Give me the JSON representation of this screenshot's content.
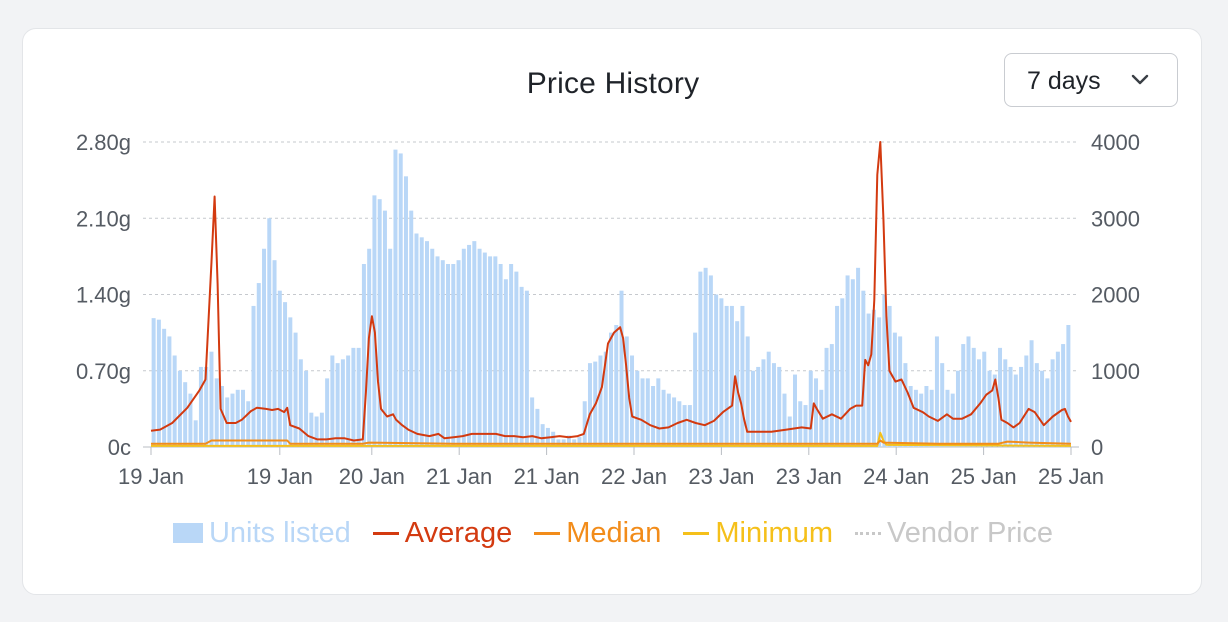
{
  "chart_data": {
    "type": "bar+line",
    "title": "Price History",
    "range_select": {
      "selected": "7 days"
    },
    "x_tick_labels": [
      "19 Jan",
      "19 Jan",
      "20 Jan",
      "21 Jan",
      "21 Jan",
      "22 Jan",
      "23 Jan",
      "23 Jan",
      "24 Jan",
      "25 Jan",
      "25 Jan"
    ],
    "y_left": {
      "ticks": [
        "0c",
        "0.70g",
        "1.40g",
        "2.10g",
        "2.80g"
      ],
      "ylim": [
        0,
        2.8
      ],
      "unit": "gold"
    },
    "y_right": {
      "ticks": [
        "0",
        "1000",
        "2000",
        "3000",
        "4000"
      ],
      "ylim": [
        0,
        4000
      ]
    },
    "grid": "horizontal-dashed",
    "legend": {
      "position": "bottom",
      "items": [
        {
          "label": "Units listed",
          "color": "#b9d7f7",
          "kind": "bar"
        },
        {
          "label": "Average",
          "color": "#d33a10",
          "kind": "line"
        },
        {
          "label": "Median",
          "color": "#f28c1a",
          "kind": "line"
        },
        {
          "label": "Minimum",
          "color": "#f5c01a",
          "kind": "line"
        },
        {
          "label": "Vendor Price",
          "color": "#c8c8c8",
          "kind": "dotted"
        }
      ]
    },
    "series": [
      {
        "name": "Units listed",
        "axis": "right",
        "type": "bar",
        "values": [
          1690,
          1670,
          1550,
          1450,
          1200,
          1000,
          850,
          700,
          350,
          1050,
          1050,
          1250,
          900,
          800,
          650,
          700,
          750,
          750,
          600,
          1850,
          2150,
          2600,
          3000,
          2450,
          2050,
          1900,
          1700,
          1500,
          1150,
          1000,
          450,
          400,
          450,
          900,
          1200,
          1100,
          1150,
          1200,
          1300,
          1300,
          2400,
          2600,
          3300,
          3250,
          3100,
          2600,
          3900,
          3850,
          3550,
          3100,
          2800,
          2750,
          2700,
          2600,
          2500,
          2450,
          2400,
          2400,
          2450,
          2600,
          2650,
          2700,
          2600,
          2550,
          2500,
          2500,
          2400,
          2200,
          2400,
          2300,
          2100,
          2050,
          650,
          500,
          300,
          250,
          200,
          100,
          100,
          150,
          100,
          130,
          600,
          1100,
          1120,
          1200,
          1250,
          1500,
          1600,
          2050,
          1450,
          1200,
          1000,
          900,
          900,
          800,
          900,
          750,
          700,
          650,
          600,
          550,
          550,
          1500,
          2300,
          2350,
          2250,
          2000,
          1950,
          1850,
          1850,
          1650,
          1850,
          1450,
          1000,
          1050,
          1150,
          1250,
          1100,
          1050,
          700,
          400,
          950,
          600,
          550,
          1000,
          900,
          750,
          1300,
          1350,
          1850,
          1950,
          2250,
          2200,
          2350,
          2050,
          1750,
          1800,
          1700,
          2000,
          1850,
          1500,
          1450,
          1100,
          800,
          750,
          700,
          800,
          750,
          1450,
          1100,
          750,
          700,
          1000,
          1350,
          1450,
          1300,
          1150,
          1250,
          1000,
          950,
          1300,
          1150,
          1050,
          950,
          1050,
          1200,
          1400,
          1100,
          1000,
          900,
          1150,
          1250,
          1350,
          1600
        ]
      },
      {
        "name": "Average",
        "axis": "left",
        "type": "line",
        "points": [
          [
            0,
            0.15
          ],
          [
            3,
            0.16
          ],
          [
            7,
            0.22
          ],
          [
            12,
            0.36
          ],
          [
            16,
            0.52
          ],
          [
            18,
            0.62
          ],
          [
            20,
            1.7
          ],
          [
            21,
            2.3
          ],
          [
            22,
            1.5
          ],
          [
            23,
            0.35
          ],
          [
            25,
            0.22
          ],
          [
            28,
            0.22
          ],
          [
            30,
            0.25
          ],
          [
            33,
            0.33
          ],
          [
            35,
            0.36
          ],
          [
            38,
            0.35
          ],
          [
            40,
            0.34
          ],
          [
            42,
            0.35
          ],
          [
            44,
            0.32
          ],
          [
            45,
            0.36
          ],
          [
            46,
            0.2
          ],
          [
            49,
            0.17
          ],
          [
            52,
            0.1
          ],
          [
            55,
            0.07
          ],
          [
            58,
            0.07
          ],
          [
            61,
            0.08
          ],
          [
            64,
            0.08
          ],
          [
            67,
            0.06
          ],
          [
            70,
            0.07
          ],
          [
            71,
            0.5
          ],
          [
            72,
            1.0
          ],
          [
            73,
            1.2
          ],
          [
            74,
            1.05
          ],
          [
            75,
            0.6
          ],
          [
            76,
            0.35
          ],
          [
            78,
            0.28
          ],
          [
            80,
            0.3
          ],
          [
            81,
            0.25
          ],
          [
            83,
            0.2
          ],
          [
            85,
            0.16
          ],
          [
            88,
            0.12
          ],
          [
            92,
            0.1
          ],
          [
            95,
            0.12
          ],
          [
            97,
            0.08
          ],
          [
            100,
            0.09
          ],
          [
            103,
            0.1
          ],
          [
            106,
            0.12
          ],
          [
            110,
            0.12
          ],
          [
            114,
            0.12
          ],
          [
            117,
            0.1
          ],
          [
            120,
            0.1
          ],
          [
            123,
            0.09
          ],
          [
            126,
            0.1
          ],
          [
            129,
            0.08
          ],
          [
            132,
            0.09
          ],
          [
            135,
            0.1
          ],
          [
            138,
            0.09
          ],
          [
            141,
            0.1
          ],
          [
            143,
            0.12
          ],
          [
            145,
            0.3
          ],
          [
            147,
            0.4
          ],
          [
            149,
            0.55
          ],
          [
            151,
            0.95
          ],
          [
            153,
            1.05
          ],
          [
            155,
            1.1
          ],
          [
            156,
            1.0
          ],
          [
            157,
            0.75
          ],
          [
            158,
            0.45
          ],
          [
            159,
            0.28
          ],
          [
            162,
            0.25
          ],
          [
            165,
            0.2
          ],
          [
            168,
            0.17
          ],
          [
            171,
            0.18
          ],
          [
            174,
            0.22
          ],
          [
            177,
            0.25
          ],
          [
            180,
            0.22
          ],
          [
            183,
            0.2
          ],
          [
            186,
            0.24
          ],
          [
            189,
            0.32
          ],
          [
            192,
            0.38
          ],
          [
            193,
            0.65
          ],
          [
            194,
            0.5
          ],
          [
            195,
            0.4
          ],
          [
            196,
            0.25
          ],
          [
            197,
            0.14
          ],
          [
            200,
            0.14
          ],
          [
            205,
            0.14
          ],
          [
            210,
            0.16
          ],
          [
            215,
            0.18
          ],
          [
            218,
            0.17
          ],
          [
            219,
            0.4
          ],
          [
            220,
            0.35
          ],
          [
            222,
            0.26
          ],
          [
            225,
            0.3
          ],
          [
            228,
            0.26
          ],
          [
            231,
            0.35
          ],
          [
            233,
            0.38
          ],
          [
            235,
            0.38
          ],
          [
            236,
            0.8
          ],
          [
            237,
            0.75
          ],
          [
            238,
            0.85
          ],
          [
            239,
            1.35
          ],
          [
            240,
            2.5
          ],
          [
            241,
            2.8
          ],
          [
            242,
            2.1
          ],
          [
            243,
            1.2
          ],
          [
            244,
            0.7
          ],
          [
            246,
            0.6
          ],
          [
            248,
            0.62
          ],
          [
            250,
            0.5
          ],
          [
            252,
            0.36
          ],
          [
            255,
            0.32
          ],
          [
            257,
            0.28
          ],
          [
            260,
            0.24
          ],
          [
            263,
            0.3
          ],
          [
            265,
            0.26
          ],
          [
            268,
            0.26
          ],
          [
            271,
            0.3
          ],
          [
            274,
            0.4
          ],
          [
            276,
            0.48
          ],
          [
            278,
            0.52
          ],
          [
            279,
            0.62
          ],
          [
            280,
            0.45
          ],
          [
            281,
            0.25
          ],
          [
            283,
            0.22
          ],
          [
            285,
            0.18
          ],
          [
            287,
            0.22
          ],
          [
            290,
            0.35
          ],
          [
            292,
            0.32
          ],
          [
            295,
            0.2
          ],
          [
            298,
            0.28
          ],
          [
            301,
            0.34
          ],
          [
            302,
            0.35
          ],
          [
            303,
            0.28
          ],
          [
            304,
            0.23
          ]
        ]
      },
      {
        "name": "Median",
        "axis": "left",
        "type": "line",
        "points": [
          [
            0,
            0.03
          ],
          [
            18,
            0.03
          ],
          [
            20,
            0.06
          ],
          [
            45,
            0.06
          ],
          [
            46,
            0.03
          ],
          [
            70,
            0.03
          ],
          [
            72,
            0.04
          ],
          [
            100,
            0.03
          ],
          [
            150,
            0.03
          ],
          [
            200,
            0.03
          ],
          [
            240,
            0.03
          ],
          [
            241,
            0.06
          ],
          [
            242,
            0.04
          ],
          [
            260,
            0.03
          ],
          [
            280,
            0.03
          ],
          [
            283,
            0.05
          ],
          [
            290,
            0.04
          ],
          [
            304,
            0.03
          ]
        ]
      },
      {
        "name": "Minimum",
        "axis": "left",
        "type": "line",
        "points": [
          [
            0,
            0.01
          ],
          [
            240,
            0.01
          ],
          [
            241,
            0.13
          ],
          [
            242,
            0.06
          ],
          [
            243,
            0.02
          ],
          [
            304,
            0.01
          ]
        ]
      }
    ]
  }
}
